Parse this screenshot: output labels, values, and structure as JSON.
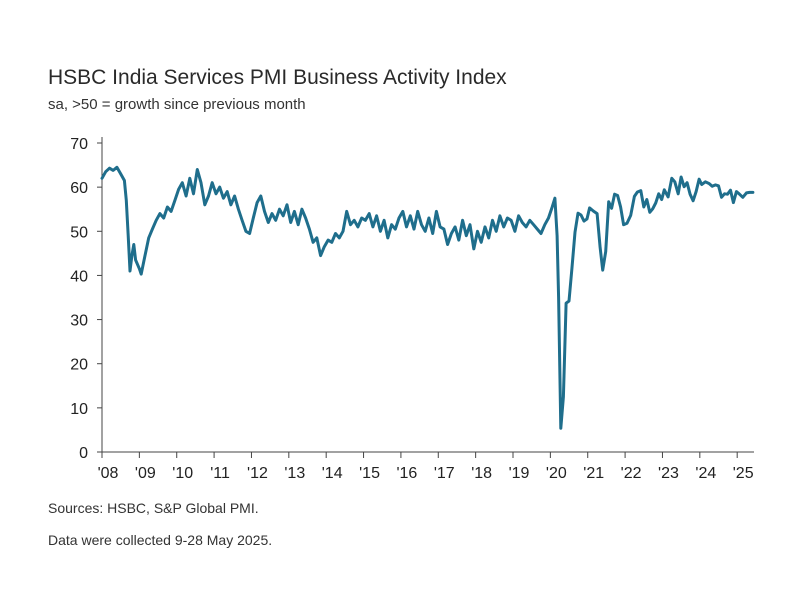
{
  "chart_data": {
    "type": "line",
    "title": "HSBC India Services PMI Business Activity Index",
    "subtitle": "sa, >50 = growth since previous month",
    "xlabel": "",
    "ylabel": "",
    "ylim": [
      0,
      70
    ],
    "yticks": [
      0,
      10,
      20,
      30,
      40,
      50,
      60,
      70
    ],
    "xlim": [
      2008.0,
      2025.45
    ],
    "xticks": [
      {
        "label": "'08",
        "value": 2008.0
      },
      {
        "label": "'09",
        "value": 2009.0
      },
      {
        "label": "'10",
        "value": 2010.0
      },
      {
        "label": "'11",
        "value": 2011.0
      },
      {
        "label": "'12",
        "value": 2012.0
      },
      {
        "label": "'13",
        "value": 2013.0
      },
      {
        "label": "'14",
        "value": 2014.0
      },
      {
        "label": "'15",
        "value": 2015.0
      },
      {
        "label": "'16",
        "value": 2016.0
      },
      {
        "label": "'17",
        "value": 2017.0
      },
      {
        "label": "'18",
        "value": 2018.0
      },
      {
        "label": "'19",
        "value": 2019.0
      },
      {
        "label": "'20",
        "value": 2020.0
      },
      {
        "label": "'21",
        "value": 2021.0
      },
      {
        "label": "'22",
        "value": 2022.0
      },
      {
        "label": "'23",
        "value": 2023.0
      },
      {
        "label": "'24",
        "value": 2024.0
      },
      {
        "label": "'25",
        "value": 2025.0
      }
    ],
    "grid": false,
    "series": [
      {
        "name": "HSBC India Services PMI Business Activity Index",
        "color": "#1f6e8c",
        "points": [
          [
            2008.0,
            62.0
          ],
          [
            2008.1,
            63.5
          ],
          [
            2008.2,
            64.3
          ],
          [
            2008.3,
            63.8
          ],
          [
            2008.4,
            64.5
          ],
          [
            2008.5,
            63.0
          ],
          [
            2008.6,
            61.5
          ],
          [
            2008.65,
            57.0
          ],
          [
            2008.7,
            49.0
          ],
          [
            2008.75,
            41.0
          ],
          [
            2008.8,
            44.5
          ],
          [
            2008.85,
            47.0
          ],
          [
            2008.9,
            43.5
          ],
          [
            2009.0,
            41.5
          ],
          [
            2009.05,
            40.3
          ],
          [
            2009.15,
            44.5
          ],
          [
            2009.25,
            48.5
          ],
          [
            2009.35,
            50.5
          ],
          [
            2009.45,
            52.5
          ],
          [
            2009.55,
            54.0
          ],
          [
            2009.65,
            53.0
          ],
          [
            2009.75,
            55.5
          ],
          [
            2009.85,
            54.5
          ],
          [
            2009.95,
            57.0
          ],
          [
            2010.05,
            59.5
          ],
          [
            2010.15,
            61.0
          ],
          [
            2010.25,
            58.0
          ],
          [
            2010.35,
            62.0
          ],
          [
            2010.45,
            58.5
          ],
          [
            2010.55,
            64.0
          ],
          [
            2010.65,
            61.0
          ],
          [
            2010.75,
            56.0
          ],
          [
            2010.85,
            58.0
          ],
          [
            2010.95,
            61.0
          ],
          [
            2011.05,
            58.5
          ],
          [
            2011.15,
            60.0
          ],
          [
            2011.25,
            57.5
          ],
          [
            2011.35,
            59.0
          ],
          [
            2011.45,
            56.0
          ],
          [
            2011.55,
            58.0
          ],
          [
            2011.65,
            55.0
          ],
          [
            2011.75,
            52.5
          ],
          [
            2011.85,
            50.0
          ],
          [
            2011.95,
            49.5
          ],
          [
            2012.05,
            53.0
          ],
          [
            2012.15,
            56.5
          ],
          [
            2012.25,
            58.0
          ],
          [
            2012.35,
            54.5
          ],
          [
            2012.45,
            52.0
          ],
          [
            2012.55,
            54.0
          ],
          [
            2012.65,
            52.5
          ],
          [
            2012.75,
            55.0
          ],
          [
            2012.85,
            53.5
          ],
          [
            2012.95,
            56.0
          ],
          [
            2013.05,
            52.0
          ],
          [
            2013.15,
            54.5
          ],
          [
            2013.25,
            51.5
          ],
          [
            2013.35,
            55.0
          ],
          [
            2013.45,
            53.0
          ],
          [
            2013.55,
            50.5
          ],
          [
            2013.65,
            47.5
          ],
          [
            2013.75,
            48.5
          ],
          [
            2013.85,
            44.5
          ],
          [
            2013.95,
            46.5
          ],
          [
            2014.05,
            48.0
          ],
          [
            2014.15,
            47.5
          ],
          [
            2014.25,
            49.5
          ],
          [
            2014.35,
            48.5
          ],
          [
            2014.45,
            50.0
          ],
          [
            2014.55,
            54.5
          ],
          [
            2014.65,
            51.5
          ],
          [
            2014.75,
            52.5
          ],
          [
            2014.85,
            51.0
          ],
          [
            2014.95,
            53.0
          ],
          [
            2015.05,
            52.5
          ],
          [
            2015.15,
            54.0
          ],
          [
            2015.25,
            51.0
          ],
          [
            2015.35,
            53.5
          ],
          [
            2015.45,
            50.0
          ],
          [
            2015.55,
            52.5
          ],
          [
            2015.65,
            48.5
          ],
          [
            2015.75,
            51.5
          ],
          [
            2015.85,
            50.5
          ],
          [
            2015.95,
            53.0
          ],
          [
            2016.05,
            54.5
          ],
          [
            2016.15,
            51.0
          ],
          [
            2016.25,
            53.5
          ],
          [
            2016.35,
            50.5
          ],
          [
            2016.45,
            54.5
          ],
          [
            2016.55,
            51.5
          ],
          [
            2016.65,
            50.0
          ],
          [
            2016.75,
            53.0
          ],
          [
            2016.85,
            49.5
          ],
          [
            2016.95,
            54.5
          ],
          [
            2017.05,
            51.0
          ],
          [
            2017.15,
            50.5
          ],
          [
            2017.25,
            47.0
          ],
          [
            2017.35,
            49.5
          ],
          [
            2017.45,
            51.0
          ],
          [
            2017.55,
            48.0
          ],
          [
            2017.65,
            52.5
          ],
          [
            2017.75,
            49.0
          ],
          [
            2017.85,
            51.5
          ],
          [
            2017.95,
            46.0
          ],
          [
            2018.05,
            50.0
          ],
          [
            2018.15,
            47.5
          ],
          [
            2018.25,
            51.0
          ],
          [
            2018.35,
            48.5
          ],
          [
            2018.45,
            52.5
          ],
          [
            2018.55,
            50.0
          ],
          [
            2018.65,
            53.5
          ],
          [
            2018.75,
            51.0
          ],
          [
            2018.85,
            53.0
          ],
          [
            2018.95,
            52.5
          ],
          [
            2019.05,
            50.0
          ],
          [
            2019.15,
            53.5
          ],
          [
            2019.25,
            52.0
          ],
          [
            2019.35,
            51.0
          ],
          [
            2019.45,
            52.5
          ],
          [
            2019.55,
            51.5
          ],
          [
            2019.65,
            50.5
          ],
          [
            2019.75,
            49.5
          ],
          [
            2019.85,
            51.5
          ],
          [
            2019.95,
            53.0
          ],
          [
            2020.05,
            55.5
          ],
          [
            2020.12,
            57.5
          ],
          [
            2020.18,
            49.0
          ],
          [
            2020.22,
            35.0
          ],
          [
            2020.28,
            5.4
          ],
          [
            2020.35,
            12.5
          ],
          [
            2020.42,
            33.7
          ],
          [
            2020.5,
            34.2
          ],
          [
            2020.58,
            41.8
          ],
          [
            2020.66,
            49.8
          ],
          [
            2020.74,
            54.1
          ],
          [
            2020.82,
            53.7
          ],
          [
            2020.9,
            52.3
          ],
          [
            2020.98,
            52.8
          ],
          [
            2021.05,
            55.3
          ],
          [
            2021.15,
            54.6
          ],
          [
            2021.25,
            54.0
          ],
          [
            2021.33,
            46.4
          ],
          [
            2021.4,
            41.2
          ],
          [
            2021.48,
            45.4
          ],
          [
            2021.56,
            56.7
          ],
          [
            2021.64,
            55.2
          ],
          [
            2021.72,
            58.4
          ],
          [
            2021.8,
            58.1
          ],
          [
            2021.88,
            55.5
          ],
          [
            2021.96,
            51.5
          ],
          [
            2022.05,
            51.8
          ],
          [
            2022.15,
            53.6
          ],
          [
            2022.25,
            57.9
          ],
          [
            2022.33,
            58.9
          ],
          [
            2022.42,
            59.2
          ],
          [
            2022.5,
            55.5
          ],
          [
            2022.58,
            57.2
          ],
          [
            2022.66,
            54.3
          ],
          [
            2022.74,
            55.1
          ],
          [
            2022.82,
            56.4
          ],
          [
            2022.9,
            58.5
          ],
          [
            2022.98,
            57.2
          ],
          [
            2023.05,
            59.4
          ],
          [
            2023.15,
            57.8
          ],
          [
            2023.25,
            62.0
          ],
          [
            2023.33,
            61.2
          ],
          [
            2023.42,
            58.5
          ],
          [
            2023.5,
            62.3
          ],
          [
            2023.58,
            60.1
          ],
          [
            2023.66,
            61.0
          ],
          [
            2023.74,
            58.4
          ],
          [
            2023.82,
            56.9
          ],
          [
            2023.9,
            59.0
          ],
          [
            2023.98,
            61.8
          ],
          [
            2024.05,
            60.6
          ],
          [
            2024.15,
            61.2
          ],
          [
            2024.25,
            60.8
          ],
          [
            2024.33,
            60.2
          ],
          [
            2024.42,
            60.5
          ],
          [
            2024.5,
            60.3
          ],
          [
            2024.58,
            57.7
          ],
          [
            2024.66,
            58.5
          ],
          [
            2024.74,
            58.4
          ],
          [
            2024.82,
            59.3
          ],
          [
            2024.9,
            56.5
          ],
          [
            2024.98,
            59.0
          ],
          [
            2025.05,
            58.5
          ],
          [
            2025.15,
            57.7
          ],
          [
            2025.25,
            58.7
          ],
          [
            2025.33,
            58.8
          ],
          [
            2025.42,
            58.8
          ]
        ]
      }
    ]
  },
  "footer": {
    "sources": "Sources: HSBC, S&P Global PMI.",
    "collection_note": "Data were collected 9-28 May 2025."
  }
}
